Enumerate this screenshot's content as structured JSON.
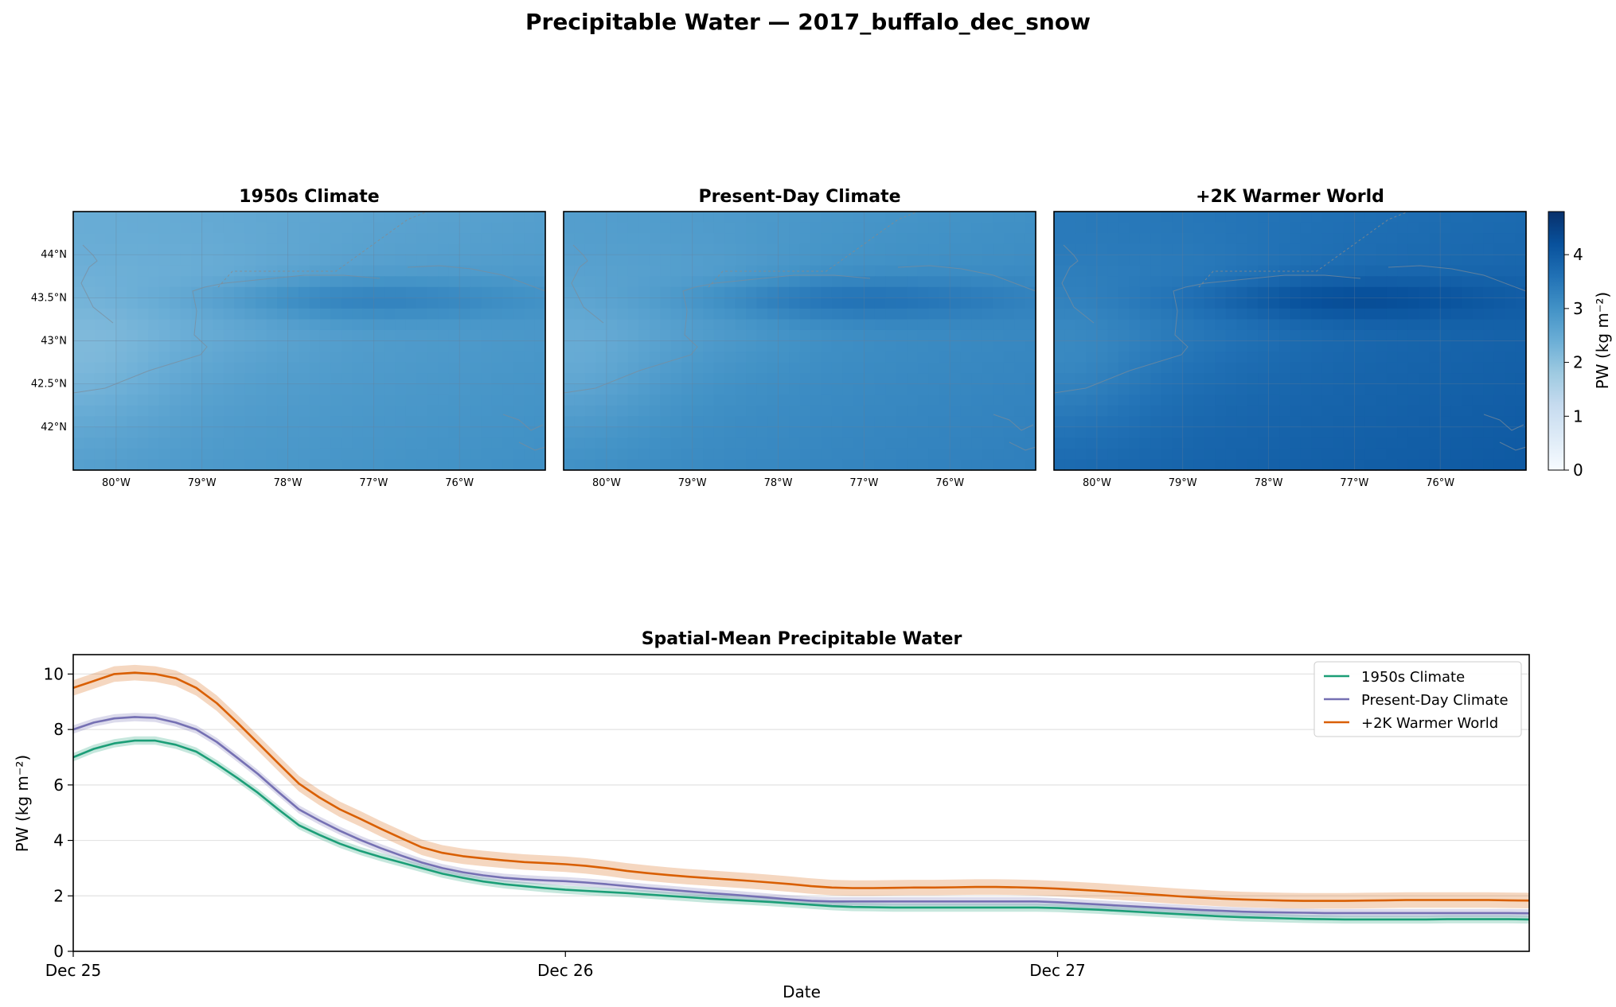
{
  "suptitle": "Precipitable Water — 2017_buffalo_dec_snow",
  "maps": {
    "panels": [
      {
        "title": "1950s Climate",
        "shift": 0.0
      },
      {
        "title": "Present-Day Climate",
        "shift": 0.3
      },
      {
        "title": "+2K Warmer World",
        "shift": 1.0
      }
    ],
    "lon_ticks": [
      "80°W",
      "79°W",
      "78°W",
      "77°W",
      "76°W"
    ],
    "lat_ticks": [
      "44°N",
      "43.5°N",
      "43°N",
      "42.5°N",
      "42°N"
    ],
    "colormap": "Blues",
    "colorbar": {
      "label": "PW (kg m⁻²)",
      "min": 0,
      "max": 4.8,
      "ticks": [
        "0",
        "1",
        "2",
        "3",
        "4"
      ]
    }
  },
  "chart_data": {
    "type": "line",
    "title": "Spatial-Mean Precipitable Water",
    "xlabel": "Date",
    "ylabel": "PW (kg m⁻²)",
    "x_tick_labels": [
      "Dec 25",
      "Dec 26",
      "Dec 27"
    ],
    "x_tick_values": [
      0,
      24,
      48
    ],
    "xlim": [
      0,
      71
    ],
    "ylim": [
      0,
      10.7
    ],
    "y_ticks": [
      "0",
      "2",
      "4",
      "6",
      "8",
      "10"
    ],
    "grid": "horizontal",
    "legend_position": "top-right",
    "x_hours": [
      0,
      1,
      2,
      3,
      4,
      5,
      6,
      7,
      8,
      9,
      10,
      11,
      12,
      13,
      14,
      15,
      16,
      17,
      18,
      19,
      20,
      21,
      22,
      23,
      24,
      25,
      26,
      27,
      28,
      29,
      30,
      31,
      32,
      33,
      34,
      35,
      36,
      37,
      38,
      39,
      40,
      41,
      42,
      43,
      44,
      45,
      46,
      47,
      48,
      49,
      50,
      51,
      52,
      53,
      54,
      55,
      56,
      57,
      58,
      59,
      60,
      61,
      62,
      63,
      64,
      65,
      66,
      67,
      68,
      69,
      70,
      71
    ],
    "series": [
      {
        "name": "1950s Climate",
        "color": "#1b9e77",
        "values": [
          7.0,
          7.3,
          7.5,
          7.6,
          7.6,
          7.45,
          7.2,
          6.75,
          6.25,
          5.72,
          5.12,
          4.55,
          4.2,
          3.88,
          3.62,
          3.4,
          3.2,
          3.0,
          2.8,
          2.65,
          2.52,
          2.42,
          2.35,
          2.28,
          2.22,
          2.18,
          2.14,
          2.1,
          2.05,
          2.0,
          1.95,
          1.9,
          1.86,
          1.82,
          1.78,
          1.73,
          1.68,
          1.63,
          1.6,
          1.59,
          1.58,
          1.58,
          1.58,
          1.58,
          1.58,
          1.58,
          1.58,
          1.58,
          1.56,
          1.53,
          1.5,
          1.46,
          1.42,
          1.38,
          1.34,
          1.3,
          1.26,
          1.23,
          1.21,
          1.19,
          1.17,
          1.16,
          1.15,
          1.15,
          1.15,
          1.15,
          1.15,
          1.16,
          1.16,
          1.16,
          1.16,
          1.15
        ],
        "band": 0.15
      },
      {
        "name": "Present-Day Climate",
        "color": "#7570b3",
        "values": [
          8.0,
          8.25,
          8.4,
          8.45,
          8.42,
          8.25,
          8.0,
          7.55,
          6.98,
          6.4,
          5.75,
          5.12,
          4.72,
          4.35,
          4.02,
          3.72,
          3.45,
          3.2,
          3.0,
          2.85,
          2.74,
          2.65,
          2.6,
          2.56,
          2.53,
          2.48,
          2.42,
          2.35,
          2.28,
          2.22,
          2.16,
          2.1,
          2.05,
          1.99,
          1.93,
          1.87,
          1.82,
          1.8,
          1.8,
          1.8,
          1.8,
          1.8,
          1.8,
          1.8,
          1.8,
          1.8,
          1.8,
          1.8,
          1.77,
          1.73,
          1.69,
          1.65,
          1.61,
          1.57,
          1.53,
          1.49,
          1.46,
          1.43,
          1.41,
          1.4,
          1.39,
          1.38,
          1.38,
          1.38,
          1.38,
          1.38,
          1.38,
          1.38,
          1.38,
          1.38,
          1.38,
          1.37
        ],
        "band": 0.15
      },
      {
        "name": "+2K Warmer World",
        "color": "#d95f02",
        "values": [
          9.5,
          9.75,
          10.0,
          10.05,
          10.0,
          9.85,
          9.5,
          8.95,
          8.25,
          7.52,
          6.78,
          6.05,
          5.55,
          5.12,
          4.78,
          4.42,
          4.08,
          3.75,
          3.55,
          3.43,
          3.35,
          3.28,
          3.22,
          3.18,
          3.14,
          3.08,
          3.0,
          2.9,
          2.82,
          2.75,
          2.69,
          2.64,
          2.59,
          2.54,
          2.48,
          2.42,
          2.35,
          2.3,
          2.28,
          2.28,
          2.29,
          2.3,
          2.3,
          2.31,
          2.32,
          2.32,
          2.31,
          2.29,
          2.26,
          2.22,
          2.18,
          2.13,
          2.08,
          2.03,
          1.98,
          1.94,
          1.9,
          1.87,
          1.85,
          1.83,
          1.82,
          1.82,
          1.82,
          1.83,
          1.84,
          1.85,
          1.85,
          1.85,
          1.85,
          1.85,
          1.84,
          1.83
        ],
        "band": 0.28
      }
    ]
  }
}
